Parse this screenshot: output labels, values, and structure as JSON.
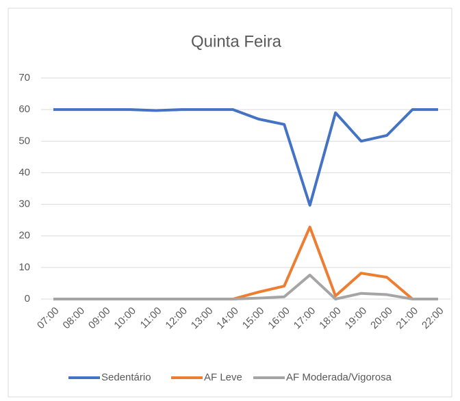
{
  "chart_data": {
    "type": "line",
    "title": "Quinta Feira",
    "categories": [
      "07:00",
      "08:00",
      "09:00",
      "10:00",
      "11:00",
      "12:00",
      "13:00",
      "14:00",
      "15:00",
      "16:00",
      "17:00",
      "18:00",
      "19:00",
      "20:00",
      "21:00",
      "22:00"
    ],
    "series": [
      {
        "name": "Sedentário",
        "color": "#4472c4",
        "values": [
          60,
          60,
          60,
          60,
          59.7,
          60,
          60,
          60,
          57,
          55.3,
          29.7,
          59,
          50,
          51.8,
          60,
          60
        ]
      },
      {
        "name": "AF Leve",
        "color": "#ed7d31",
        "values": [
          0,
          0,
          0,
          0,
          0,
          0,
          0,
          0,
          2.2,
          4.1,
          22.8,
          1,
          8.2,
          6.9,
          0,
          0
        ]
      },
      {
        "name": "AF Moderada/Vigorosa",
        "color": "#a5a5a5",
        "values": [
          0,
          0,
          0,
          0,
          0,
          0,
          0,
          0,
          0.3,
          0.7,
          7.6,
          0,
          1.8,
          1.4,
          0,
          0
        ]
      }
    ],
    "ylim": [
      0,
      70
    ],
    "yticks": [
      0,
      10,
      20,
      30,
      40,
      50,
      60,
      70
    ],
    "grid": true,
    "legend": "bottom"
  }
}
